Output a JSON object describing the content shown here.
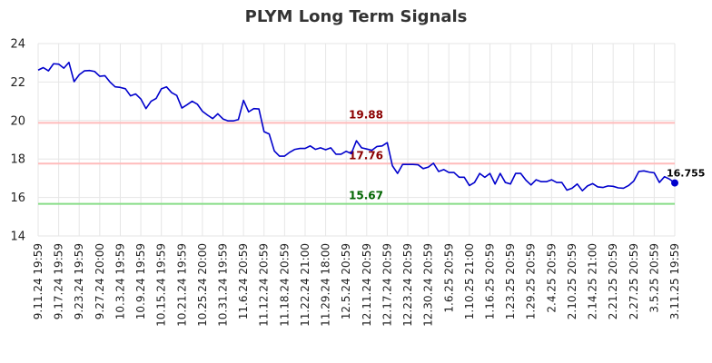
{
  "chart_data": {
    "type": "line",
    "title": "PLYM Long Term Signals",
    "xlabel": "",
    "ylabel": "",
    "ylim": [
      14,
      24
    ],
    "yticks": [
      14,
      16,
      18,
      20,
      22,
      24
    ],
    "grid": true,
    "legend": "none",
    "x_tick_labels": [
      "9.11.24 19:59",
      "9.17.24 19:59",
      "9.23.24 19:59",
      "9.27.24 20:00",
      "10.3.24 19:59",
      "10.9.24 19:59",
      "10.15.24 19:59",
      "10.21.24 19:59",
      "10.25.24 20:00",
      "10.31.24 19:59",
      "11.6.24 20:59",
      "11.12.24 20:59",
      "11.18.24 20:59",
      "11.22.24 21:00",
      "11.29.24 18:00",
      "12.5.24 20:59",
      "12.11.24 20:59",
      "12.17.24 20:59",
      "12.23.24 20:59",
      "12.30.24 20:59",
      "1.6.25 20:59",
      "1.10.25 21:00",
      "1.16.25 20:59",
      "1.23.25 20:59",
      "1.29.25 20:59",
      "2.4.25 20:59",
      "2.10.25 20:59",
      "2.14.25 21:00",
      "2.21.25 20:59",
      "2.27.25 20:59",
      "3.5.25 20:59",
      "3.11.25 19:59"
    ],
    "series": [
      {
        "values": [
          22.62,
          22.75,
          22.58,
          22.95,
          22.93,
          22.72,
          23.02,
          22.02,
          22.38,
          22.58,
          22.6,
          22.55,
          22.3,
          22.33,
          22.0,
          21.75,
          21.72,
          21.65,
          21.28,
          21.38,
          21.12,
          20.62,
          21.0,
          21.15,
          21.65,
          21.75,
          21.45,
          21.3,
          20.65,
          20.82,
          21.0,
          20.85,
          20.48,
          20.28,
          20.1,
          20.35,
          20.08,
          19.98,
          19.98,
          20.05,
          21.05,
          20.45,
          20.62,
          20.6,
          19.42,
          19.3,
          18.42,
          18.15,
          18.15,
          18.35,
          18.5,
          18.55,
          18.55,
          18.68,
          18.5,
          18.58,
          18.48,
          18.58,
          18.25,
          18.25,
          18.4,
          18.28,
          18.95,
          18.58,
          18.52,
          18.45,
          18.65,
          18.68,
          18.85,
          17.65,
          17.25,
          17.72,
          17.72,
          17.72,
          17.7,
          17.5,
          17.58,
          17.78,
          17.35,
          17.45,
          17.3,
          17.3,
          17.05,
          17.05,
          16.62,
          16.78,
          17.25,
          17.05,
          17.25,
          16.7,
          17.25,
          16.78,
          16.7,
          17.25,
          17.25,
          16.9,
          16.65,
          16.92,
          16.82,
          16.82,
          16.92,
          16.78,
          16.78,
          16.38,
          16.48,
          16.7,
          16.35,
          16.6,
          16.72,
          16.55,
          16.52,
          16.6,
          16.58,
          16.5,
          16.48,
          16.62,
          16.85,
          17.35,
          17.38,
          17.32,
          17.28,
          16.78,
          17.08,
          16.95,
          16.755
        ],
        "color": "#0000cc"
      }
    ],
    "reference_lines": [
      {
        "value": 19.88,
        "label": "19.88",
        "color": "#ffbbbb",
        "label_color": "#8b0000"
      },
      {
        "value": 17.76,
        "label": "17.76",
        "color": "#ffbbbb",
        "label_color": "#8b0000"
      },
      {
        "value": 15.67,
        "label": "15.67",
        "color": "#88dd88",
        "label_color": "#006400"
      }
    ],
    "last_value_label": "16.755"
  }
}
